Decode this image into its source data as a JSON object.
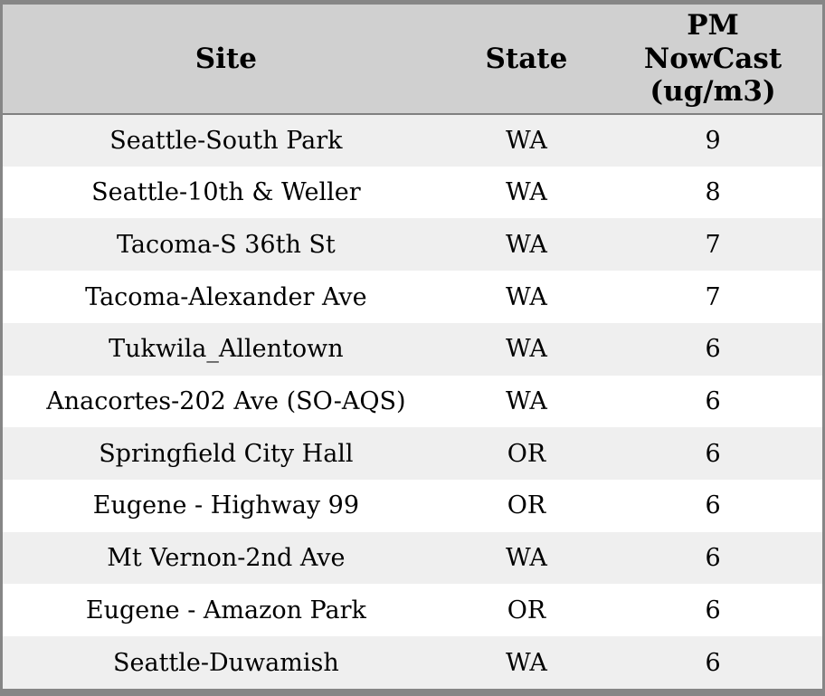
{
  "colors": {
    "header_background": "#d0d0d0",
    "row_odd_background": "#efefef",
    "row_even_background": "#ffffff",
    "border": "#868686",
    "text": "#000000"
  },
  "table": {
    "columns": [
      {
        "label": "Site"
      },
      {
        "label": "State"
      },
      {
        "label": "PM NowCast (ug/m3)",
        "label_display": "PM\nNowCast\n(ug/m3)"
      }
    ],
    "rows": [
      {
        "site": "Seattle-South Park",
        "state": "WA",
        "pm_nowcast": "9"
      },
      {
        "site": "Seattle-10th & Weller",
        "state": "WA",
        "pm_nowcast": "8"
      },
      {
        "site": "Tacoma-S 36th St",
        "state": "WA",
        "pm_nowcast": "7"
      },
      {
        "site": "Tacoma-Alexander Ave",
        "state": "WA",
        "pm_nowcast": "7"
      },
      {
        "site": "Tukwila_Allentown",
        "state": "WA",
        "pm_nowcast": "6"
      },
      {
        "site": "Anacortes-202 Ave (SO-AQS)",
        "state": "WA",
        "pm_nowcast": "6"
      },
      {
        "site": "Springfield City Hall",
        "state": "OR",
        "pm_nowcast": "6"
      },
      {
        "site": "Eugene - Highway 99",
        "state": "OR",
        "pm_nowcast": "6"
      },
      {
        "site": "Mt Vernon-2nd Ave",
        "state": "WA",
        "pm_nowcast": "6"
      },
      {
        "site": "Eugene - Amazon Park",
        "state": "OR",
        "pm_nowcast": "6"
      },
      {
        "site": "Seattle-Duwamish",
        "state": "WA",
        "pm_nowcast": "6"
      }
    ]
  },
  "chart_data": {
    "type": "table",
    "title": "",
    "columns": [
      "Site",
      "State",
      "PM NowCast (ug/m3)"
    ],
    "rows": [
      [
        "Seattle-South Park",
        "WA",
        9
      ],
      [
        "Seattle-10th & Weller",
        "WA",
        8
      ],
      [
        "Tacoma-S 36th St",
        "WA",
        7
      ],
      [
        "Tacoma-Alexander Ave",
        "WA",
        7
      ],
      [
        "Tukwila_Allentown",
        "WA",
        6
      ],
      [
        "Anacortes-202 Ave (SO-AQS)",
        "WA",
        6
      ],
      [
        "Springfield City Hall",
        "OR",
        6
      ],
      [
        "Eugene - Highway 99",
        "OR",
        6
      ],
      [
        "Mt Vernon-2nd Ave",
        "WA",
        6
      ],
      [
        "Eugene - Amazon Park",
        "OR",
        6
      ],
      [
        "Seattle-Duwamish",
        "WA",
        6
      ]
    ]
  }
}
